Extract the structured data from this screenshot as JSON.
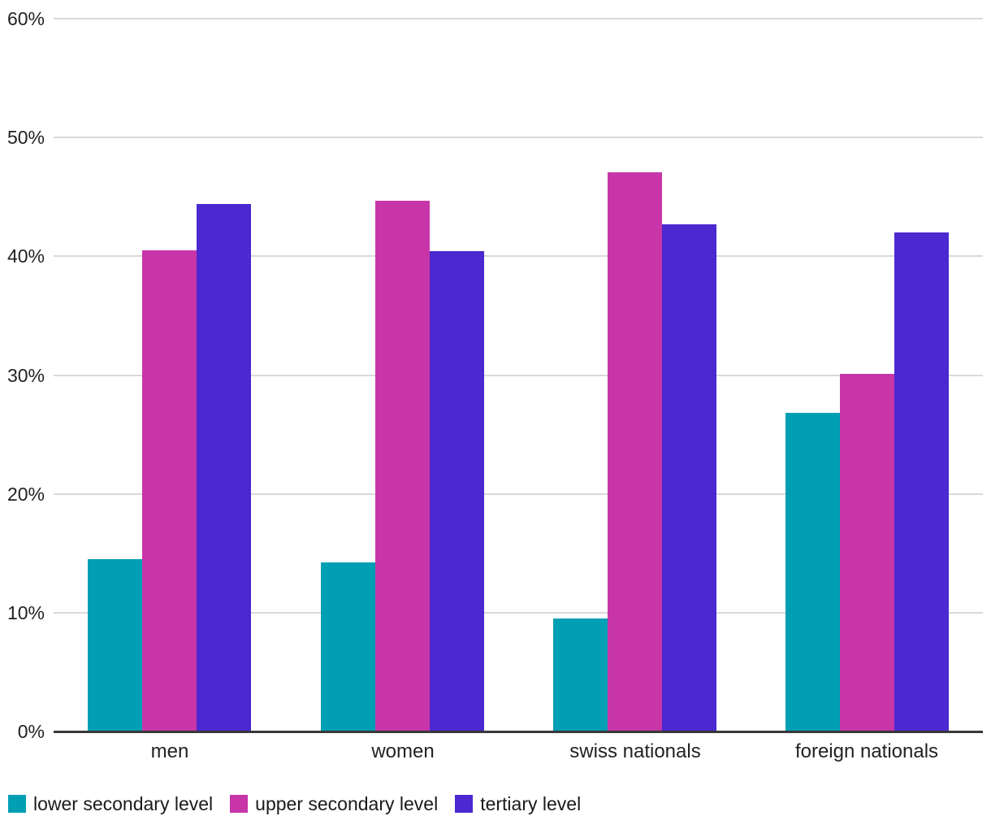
{
  "chart_data": {
    "type": "bar",
    "title": "",
    "categories": [
      "men",
      "women",
      "swiss nationals",
      "foreign nationals"
    ],
    "series": [
      {
        "name": "lower secondary level",
        "color": "#009FB4",
        "values": [
          14.5,
          14.2,
          9.5,
          26.8
        ]
      },
      {
        "name": "upper secondary level",
        "color": "#C735A8",
        "values": [
          40.5,
          44.7,
          47.1,
          30.1
        ]
      },
      {
        "name": "tertiary level",
        "color": "#4B28D0",
        "values": [
          44.4,
          40.4,
          42.7,
          42.0
        ]
      }
    ],
    "ylim": [
      0,
      60
    ],
    "ytick_step": 10,
    "yticks": [
      "0%",
      "10%",
      "20%",
      "30%",
      "40%",
      "50%",
      "60%"
    ],
    "xlabel": "",
    "ylabel": "",
    "grid": true,
    "legend_position": "bottom",
    "colors": {
      "gridline": "#D9D9D9",
      "axis_line": "#383838",
      "tick_text": "#222222",
      "background": "#FFFFFF"
    }
  }
}
